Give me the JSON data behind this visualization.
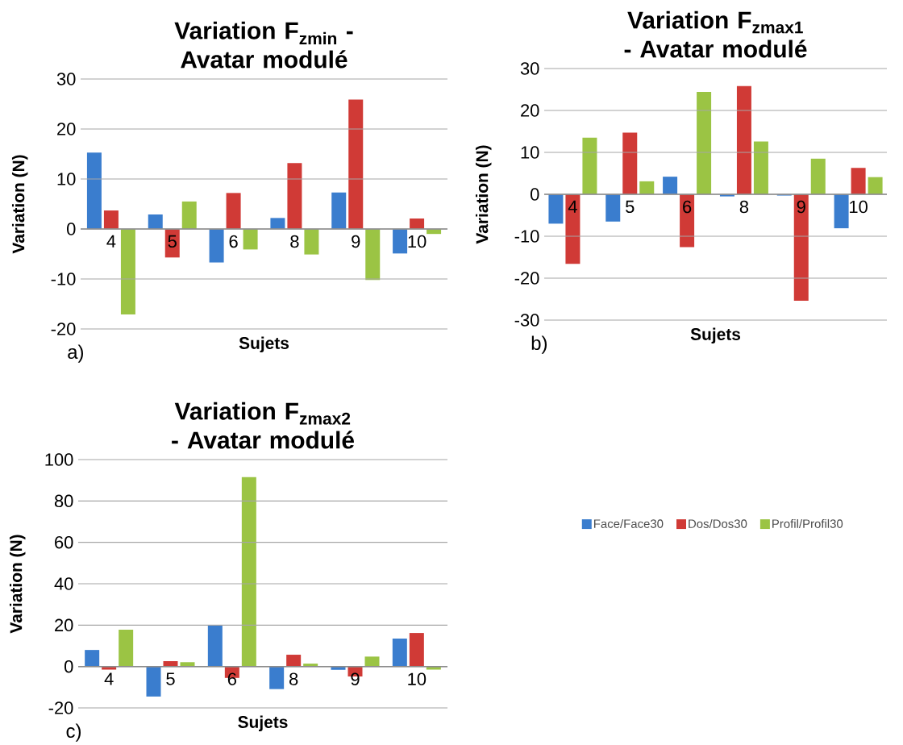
{
  "chart_data": [
    {
      "type": "bar",
      "title": "Variation F$_{zmin}$ - Avatar modulé",
      "xlabel": "Sujets",
      "ylabel": "Variation (N)",
      "categories": [
        "4",
        "5",
        "6",
        "8",
        "9",
        "10"
      ],
      "series": [
        {
          "color": "#3a7dce",
          "values": [
            15.3,
            2.9,
            -6.7,
            2.2,
            7.3,
            -4.9
          ]
        },
        {
          "color": "#d03a36",
          "values": [
            3.7,
            -5.7,
            7.2,
            13.2,
            25.9,
            2.1
          ]
        },
        {
          "color": "#9bc444",
          "values": [
            -17.1,
            5.5,
            -4.1,
            -5.1,
            -10.2,
            -1.0
          ]
        }
      ],
      "ylim": [
        -20,
        30
      ],
      "yticks": [
        -20,
        -10,
        0,
        10,
        20,
        30
      ],
      "grid": "y",
      "annotations": [
        "a)"
      ]
    },
    {
      "type": "bar",
      "title": "Variation F$_{zmax1}$ - Avatar modulé",
      "xlabel": "Sujets",
      "ylabel": "Variation (N)",
      "categories": [
        "4",
        "5",
        "6",
        "8",
        "9",
        "10"
      ],
      "series": [
        {
          "color": "#3a7dce",
          "values": [
            -7.0,
            -6.5,
            4.2,
            -0.5,
            -0.3,
            -8.1
          ]
        },
        {
          "color": "#d03a36",
          "values": [
            -16.6,
            14.7,
            -12.6,
            25.8,
            -25.4,
            6.3
          ]
        },
        {
          "color": "#9bc444",
          "values": [
            13.5,
            3.1,
            24.4,
            12.6,
            8.5,
            4.1
          ]
        }
      ],
      "ylim": [
        -30,
        30
      ],
      "yticks": [
        -30,
        -20,
        -10,
        0,
        10,
        20,
        30
      ],
      "grid": "y",
      "annotations": [
        "b)"
      ]
    },
    {
      "type": "bar",
      "title": "Variation F$_{zmax2}$ - Avatar modulé",
      "xlabel": "Sujets",
      "ylabel": "Variation (N)",
      "categories": [
        "4",
        "5",
        "6",
        "8",
        "9",
        "10"
      ],
      "series": [
        {
          "name": "Face/Face30",
          "color": "#3a7dce",
          "values": [
            8.0,
            -14.5,
            20.0,
            -10.9,
            -1.6,
            13.5
          ]
        },
        {
          "name": "Dos/Dos30",
          "color": "#d03a36",
          "values": [
            -1.5,
            2.6,
            -5.5,
            5.7,
            -4.8,
            16.2
          ]
        },
        {
          "name": "Profil/Profil30",
          "color": "#9bc444",
          "values": [
            17.8,
            2.1,
            91.5,
            1.4,
            4.8,
            -1.5
          ]
        }
      ],
      "ylim": [
        -20,
        100
      ],
      "yticks": [
        -20,
        0,
        20,
        40,
        60,
        80,
        100
      ],
      "grid": "y",
      "legend": "right",
      "annotations": [
        "c)"
      ]
    }
  ]
}
